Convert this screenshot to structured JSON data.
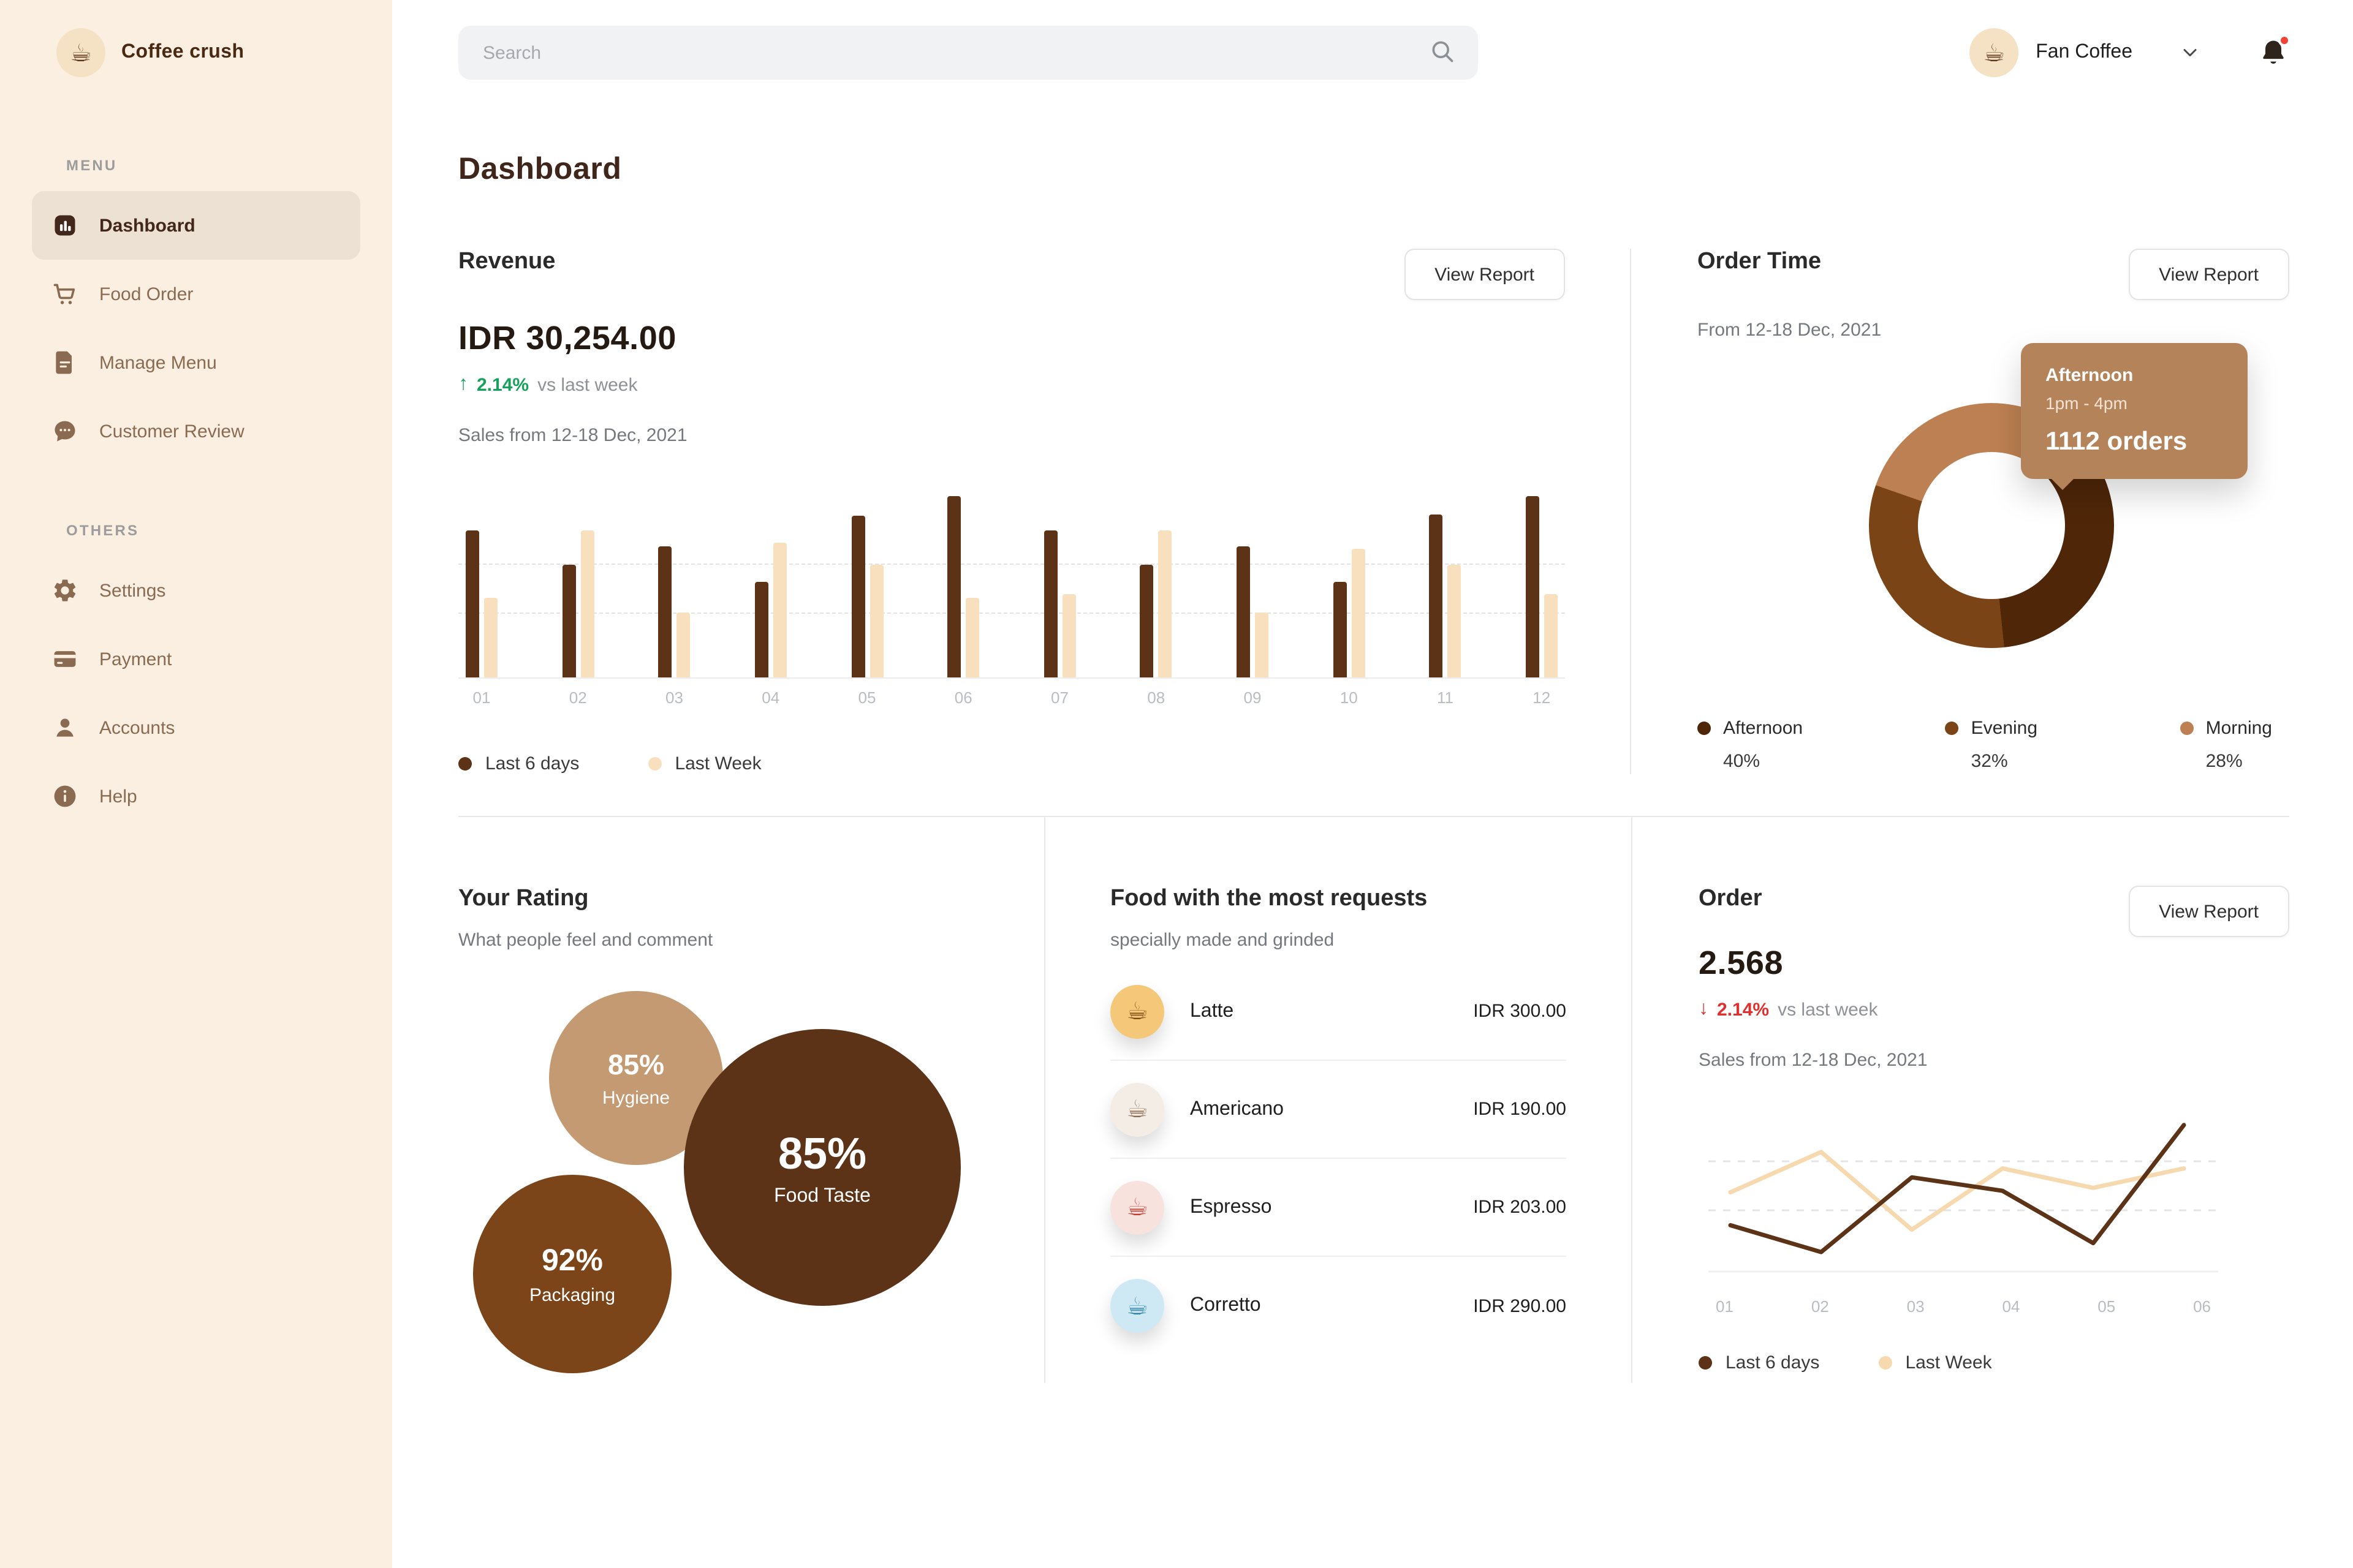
{
  "brand": {
    "name": "Coffee crush"
  },
  "topbar": {
    "search_placeholder": "Search",
    "user_name": "Fan Coffee"
  },
  "sidebar": {
    "menu_label": "MENU",
    "others_label": "OTHERS",
    "menu": [
      {
        "label": "Dashboard",
        "icon": "dashboard-icon",
        "active": true
      },
      {
        "label": "Food Order",
        "icon": "cart-icon",
        "active": false
      },
      {
        "label": "Manage Menu",
        "icon": "document-icon",
        "active": false
      },
      {
        "label": "Customer Review",
        "icon": "chat-icon",
        "active": false
      }
    ],
    "others": [
      {
        "label": "Settings",
        "icon": "gear-icon",
        "active": false
      },
      {
        "label": "Payment",
        "icon": "card-icon",
        "active": false
      },
      {
        "label": "Accounts",
        "icon": "person-icon",
        "active": false
      },
      {
        "label": "Help",
        "icon": "info-icon",
        "active": false
      }
    ]
  },
  "page": {
    "title": "Dashboard"
  },
  "revenue": {
    "title": "Revenue",
    "view_report_label": "View Report",
    "amount": "IDR 30,254.00",
    "delta": "2.14%",
    "delta_direction": "up",
    "delta_note": "vs last week",
    "subtitle": "Sales from 12-18 Dec, 2021",
    "legend": [
      "Last 6 days",
      "Last Week"
    ]
  },
  "order_time": {
    "title": "Order Time",
    "view_report_label": "View Report",
    "subtitle": "From 12-18 Dec, 2021",
    "tooltip": {
      "label": "Afternoon",
      "time": "1pm - 4pm",
      "orders": "1112 orders"
    },
    "legend": [
      {
        "label": "Afternoon",
        "value": "40%",
        "color": "#4F2608"
      },
      {
        "label": "Evening",
        "value": "32%",
        "color": "#7A4416"
      },
      {
        "label": "Morning",
        "value": "28%",
        "color": "#BD8052"
      }
    ]
  },
  "rating": {
    "title": "Your Rating",
    "subtitle": "What people feel and comment",
    "bubbles": [
      {
        "value": "85%",
        "label": "Hygiene"
      },
      {
        "value": "85%",
        "label": "Food Taste"
      },
      {
        "value": "92%",
        "label": "Packaging"
      }
    ]
  },
  "food": {
    "title": "Food with the most requests",
    "subtitle": "specially made and grinded",
    "items": [
      {
        "name": "Latte",
        "price": "IDR 300.00",
        "icon": "latte-icon"
      },
      {
        "name": "Americano",
        "price": "IDR 190.00",
        "icon": "americano-icon"
      },
      {
        "name": "Espresso",
        "price": "IDR 203.00",
        "icon": "espresso-icon"
      },
      {
        "name": "Corretto",
        "price": "IDR 290.00",
        "icon": "corretto-icon"
      }
    ]
  },
  "order": {
    "title": "Order",
    "view_report_label": "View Report",
    "amount": "2.568",
    "delta": "2.14%",
    "delta_direction": "down",
    "delta_note": "vs last week",
    "subtitle": "Sales from 12-18 Dec, 2021",
    "legend": [
      "Last 6 days",
      "Last Week"
    ]
  },
  "chart_data": [
    {
      "type": "bar",
      "title": "Revenue - Sales from 12-18 Dec, 2021",
      "categories": [
        "01",
        "02",
        "03",
        "04",
        "05",
        "06",
        "07",
        "08",
        "09",
        "10",
        "11",
        "12"
      ],
      "series": [
        {
          "name": "Last 6 days",
          "color": "#5C3317",
          "values": [
            81,
            62,
            72,
            53,
            89,
            100,
            81,
            62,
            72,
            53,
            90,
            100
          ]
        },
        {
          "name": "Last Week",
          "color": "#F8E0BE",
          "values": [
            44,
            81,
            36,
            74,
            62,
            44,
            46,
            81,
            36,
            71,
            62,
            46
          ]
        }
      ],
      "ylim": [
        0,
        100
      ],
      "grid": "dashed-horizontal",
      "legend_position": "bottom"
    },
    {
      "type": "pie",
      "title": "Order Time - From 12-18 Dec, 2021",
      "labels": [
        "Afternoon",
        "Evening",
        "Morning"
      ],
      "values": [
        40,
        32,
        28
      ],
      "colors": [
        "#4F2608",
        "#7A4416",
        "#BD8052"
      ],
      "donut": true,
      "highlight": {
        "label": "Afternoon",
        "time": "1pm - 4pm",
        "orders": 1112
      }
    },
    {
      "type": "bubble",
      "title": "Your Rating",
      "points": [
        {
          "label": "Hygiene",
          "value": 85
        },
        {
          "label": "Food Taste",
          "value": 85
        },
        {
          "label": "Packaging",
          "value": 92
        }
      ]
    },
    {
      "type": "line",
      "title": "Order - Sales from 12-18 Dec, 2021",
      "categories": [
        "01",
        "02",
        "03",
        "04",
        "05",
        "06"
      ],
      "series": [
        {
          "name": "Last 6 days",
          "color": "#5C3317",
          "values": [
            31,
            13,
            63,
            54,
            19,
            98
          ]
        },
        {
          "name": "Last Week",
          "color": "#F6D9AE",
          "values": [
            53,
            80,
            28,
            69,
            56,
            69
          ]
        }
      ],
      "ylim": [
        0,
        100
      ],
      "grid": "dashed-horizontal",
      "legend_position": "bottom"
    }
  ]
}
